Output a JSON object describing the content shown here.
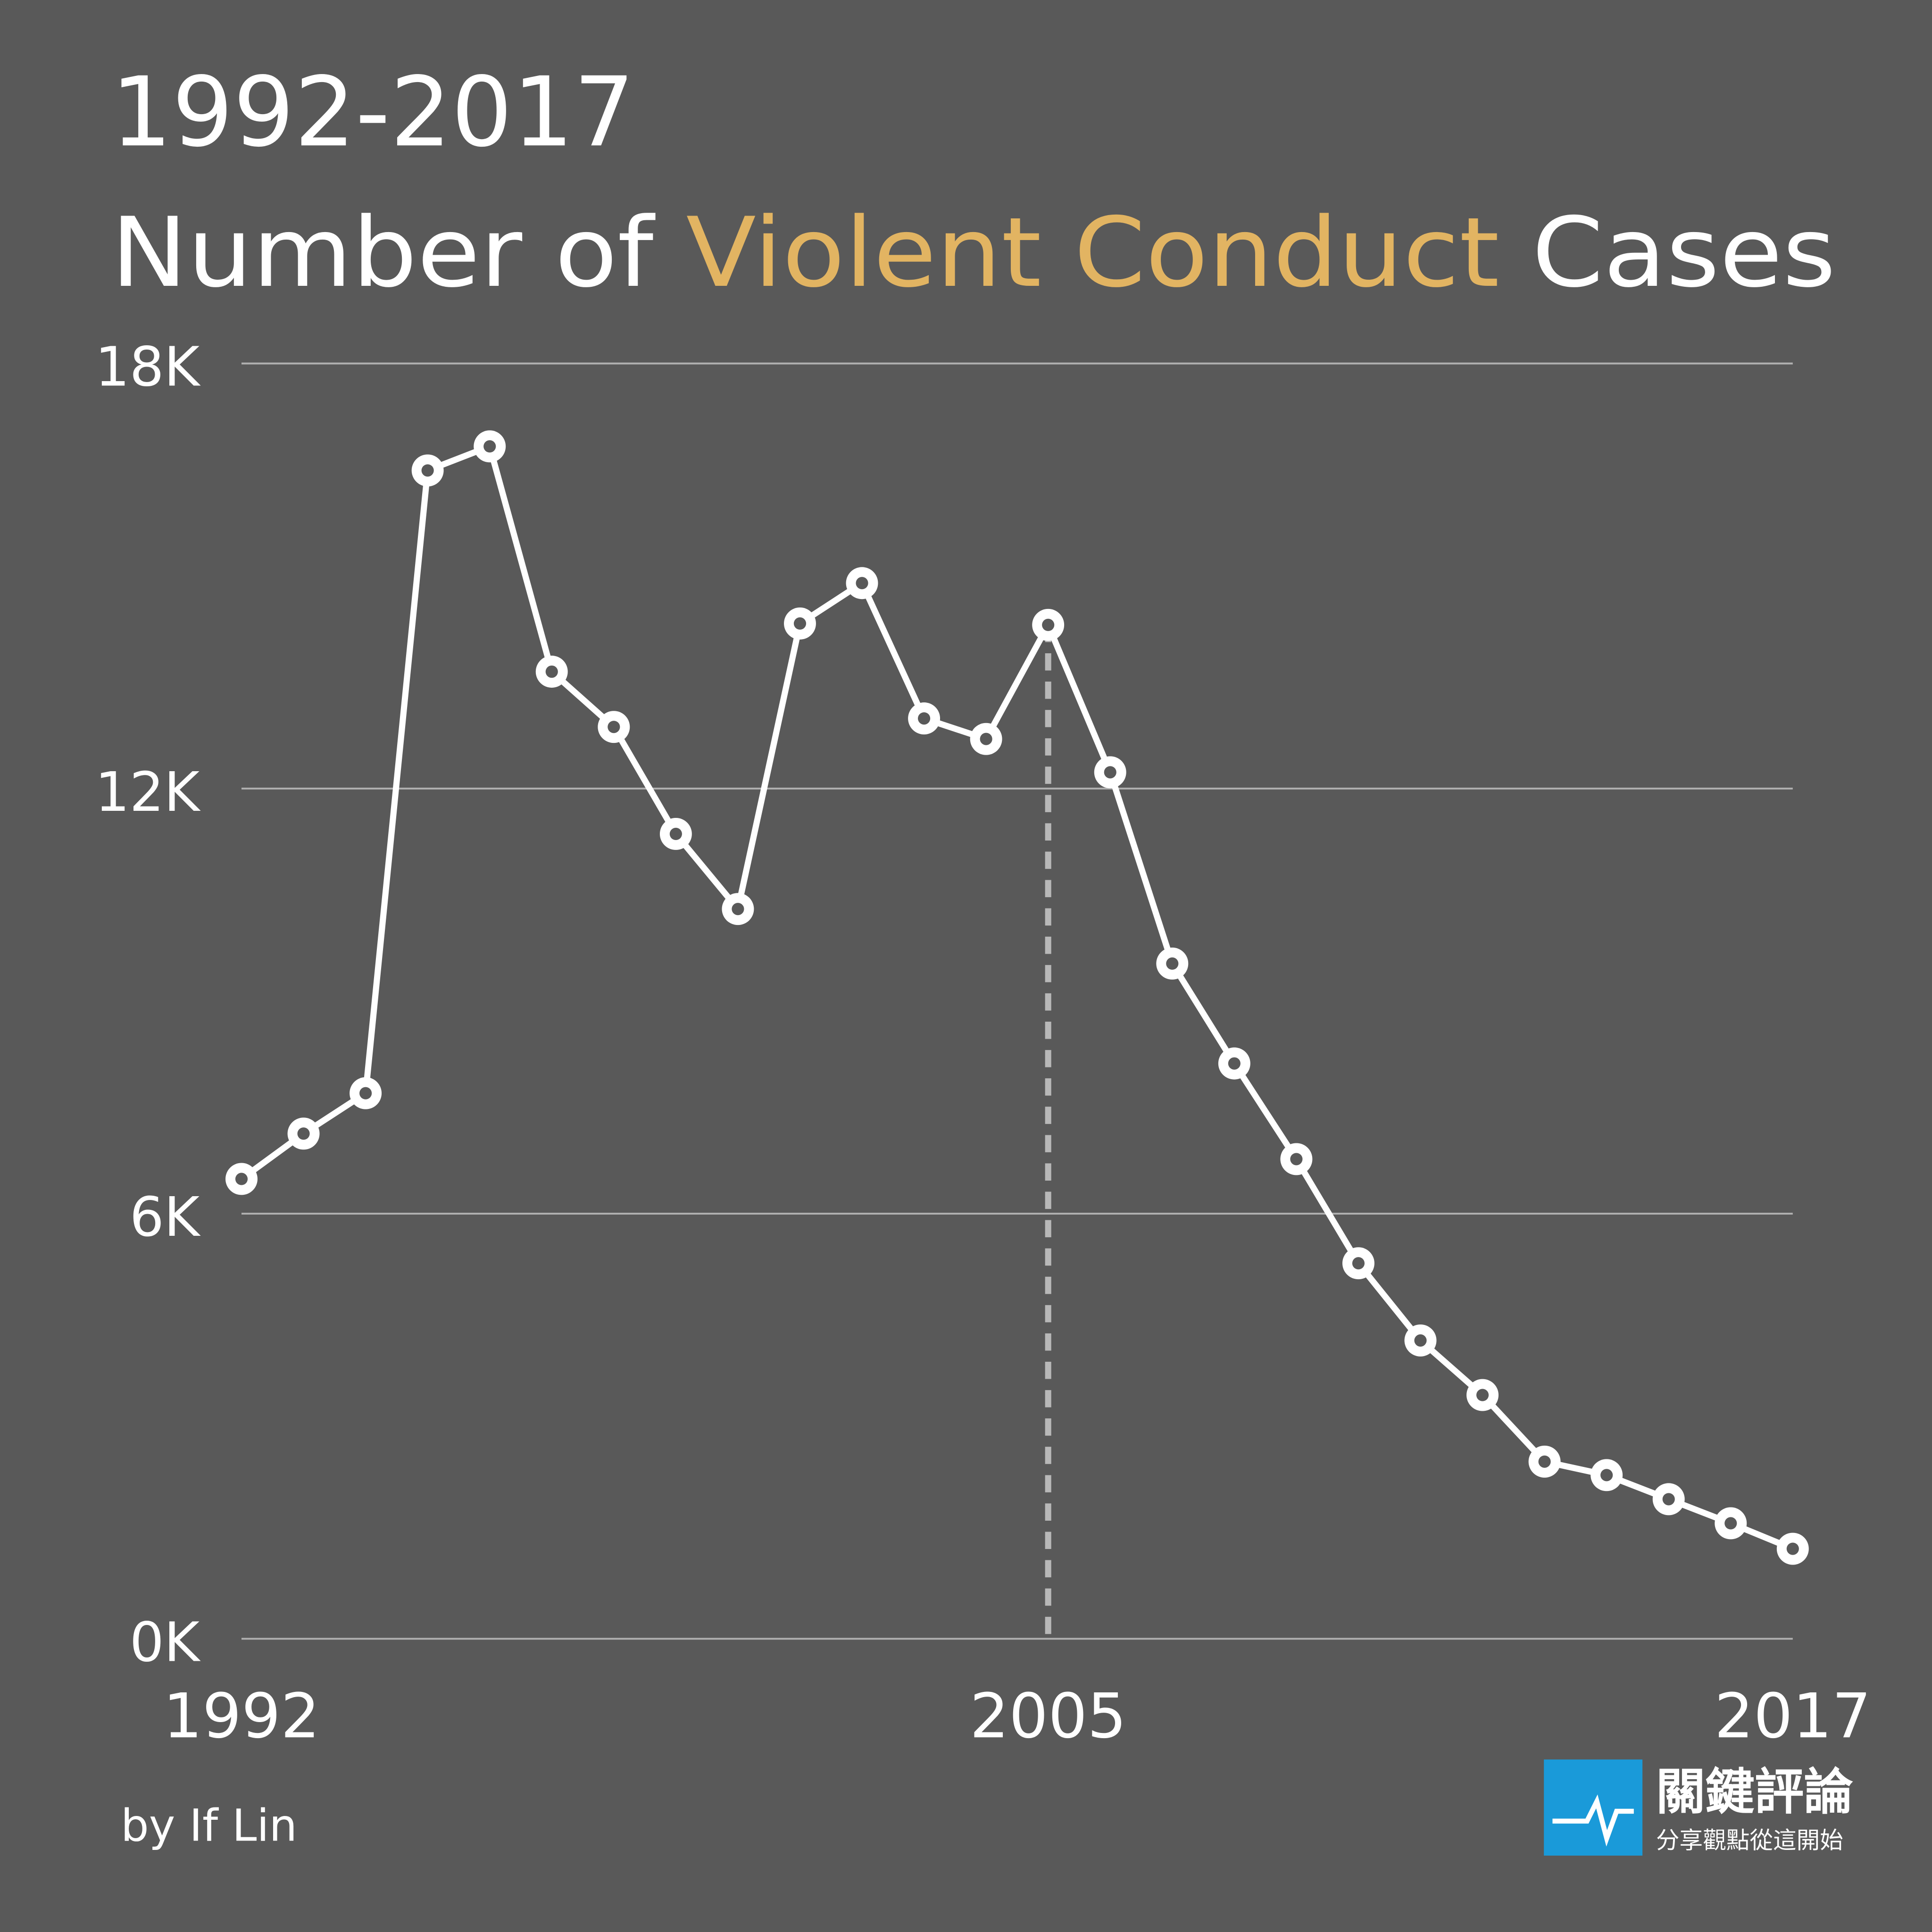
{
  "chart_data": {
    "type": "line",
    "title_top": "1992-2017",
    "title_segments": [
      "Number of",
      "Violent Conduct",
      "Cases"
    ],
    "title_highlight_color": "#e2b462",
    "x": [
      1992,
      1993,
      1994,
      1995,
      1996,
      1997,
      1998,
      1999,
      2000,
      2001,
      2002,
      2003,
      2004,
      2005,
      2006,
      2007,
      2008,
      2009,
      2010,
      2011,
      2012,
      2013,
      2014,
      2015,
      2016,
      2017
    ],
    "values": [
      6490,
      7130,
      7700,
      16490,
      16830,
      13650,
      12870,
      11360,
      10300,
      14330,
      14900,
      12990,
      12700,
      14310,
      12230,
      9530,
      8120,
      6770,
      5300,
      4210,
      3440,
      2500,
      2310,
      1970,
      1630,
      1270
    ],
    "color": "#ffffff",
    "xlim": [
      1992,
      2017
    ],
    "xticks": [
      1992,
      2005,
      2017
    ],
    "ylim": [
      0,
      18000
    ],
    "yticks": [
      {
        "value": 0,
        "label": "0K"
      },
      {
        "value": 6000,
        "label": "6K"
      },
      {
        "value": 12000,
        "label": "12K"
      },
      {
        "value": 18000,
        "label": "18K"
      }
    ],
    "grid": true,
    "highlight_x": 2005,
    "credit": "by If Lin",
    "logo_name": "關鍵評論",
    "logo_tagline": "分享觀點從這開始"
  }
}
